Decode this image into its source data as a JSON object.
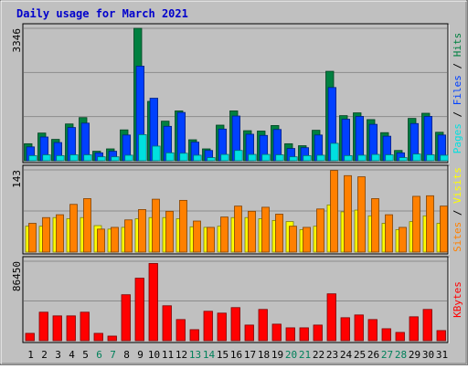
{
  "title": "Daily usage for March 2021",
  "colors": {
    "background": "#c0c0c0",
    "title_text": "#0000cc",
    "hits": "#008040",
    "files": "#0040ff",
    "pages": "#00e0e0",
    "visits": "#ffff00",
    "sites": "#ff8000",
    "kbytes": "#ff0000",
    "weekday_label": "#000000",
    "weekend_label": "#00805a"
  },
  "chart_data": {
    "type": "bar",
    "x_label_days": [
      "1",
      "2",
      "3",
      "4",
      "5",
      "6",
      "7",
      "8",
      "9",
      "10",
      "11",
      "12",
      "13",
      "14",
      "15",
      "16",
      "17",
      "18",
      "19",
      "20",
      "21",
      "22",
      "23",
      "24",
      "25",
      "26",
      "27",
      "28",
      "29",
      "30",
      "31"
    ],
    "weekend_days": [
      "6",
      "7",
      "13",
      "14",
      "20",
      "21",
      "27",
      "28"
    ],
    "panels": [
      {
        "ylabel_series": [
          "Pages",
          "Files",
          "Hits"
        ],
        "ymax_label": "3346",
        "ylim": [
          0,
          3346
        ],
        "series": [
          {
            "name": "Hits",
            "values": [
              430,
              700,
              540,
              930,
              1090,
              240,
              300,
              780,
              3346,
              1500,
              1000,
              1260,
              530,
              300,
              900,
              1260,
              760,
              750,
              890,
              430,
              380,
              770,
              2260,
              1140,
              1210,
              1040,
              710,
              260,
              1070,
              1200,
              720
            ]
          },
          {
            "name": "Files",
            "values": [
              350,
              600,
              460,
              840,
              950,
              200,
              240,
              650,
              2390,
              1580,
              870,
              1220,
              470,
              260,
              800,
              1130,
              670,
              640,
              790,
              310,
              330,
              650,
              1850,
              1050,
              1120,
              920,
              620,
              200,
              940,
              1120,
              650
            ]
          },
          {
            "name": "Pages",
            "values": [
              130,
              150,
              130,
              150,
              150,
              100,
              100,
              140,
              660,
              370,
              200,
              190,
              140,
              80,
              160,
              260,
              160,
              160,
              150,
              100,
              130,
              140,
              440,
              130,
              140,
              160,
              150,
              80,
              170,
              150,
              140
            ]
          }
        ]
      },
      {
        "ylabel_series": [
          "Sites",
          "Visits"
        ],
        "ymax_label": "143",
        "ylim": [
          0,
          143
        ],
        "series": [
          {
            "name": "Visits",
            "values": [
              45,
              45,
              60,
              58,
              60,
              46,
              40,
              43,
              58,
              60,
              60,
              58,
              44,
              43,
              45,
              60,
              60,
              58,
              55,
              53,
              39,
              45,
              82,
              70,
              73,
              63,
              50,
              39,
              53,
              63,
              50
            ]
          },
          {
            "name": "Sites",
            "values": [
              50,
              60,
              65,
              83,
              93,
              40,
              43,
              56,
              74,
              92,
              71,
              90,
              54,
              43,
              61,
              80,
              71,
              78,
              66,
              45,
              43,
              75,
              142,
              133,
              131,
              93,
              65,
              43,
              97,
              98,
              80
            ]
          }
        ]
      },
      {
        "ylabel_series": [
          "KBytes"
        ],
        "ymax_label": "86450",
        "ylim": [
          0,
          86450
        ],
        "series": [
          {
            "name": "KBytes",
            "values": [
              8000,
              31000,
              27000,
              27000,
              31000,
              8000,
              5000,
              50000,
              68000,
              84000,
              38000,
              23000,
              12000,
              32000,
              30000,
              36000,
              17000,
              34000,
              18000,
              14000,
              14000,
              17000,
              51000,
              25000,
              28000,
              23000,
              13000,
              9000,
              26000,
              34000,
              11000
            ]
          }
        ]
      }
    ]
  }
}
